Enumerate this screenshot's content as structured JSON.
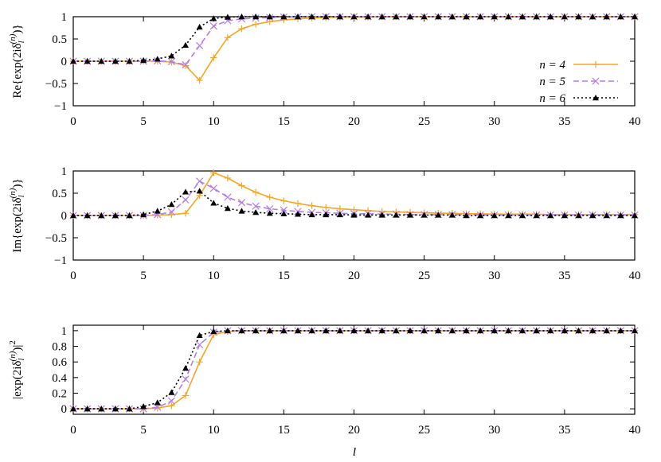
{
  "chart_data": [
    {
      "type": "line",
      "panel": "re",
      "ylabel_parts": {
        "pre": "Re{exp(2iδ",
        "sub": "l",
        "sup": "(n)",
        "post": ")}"
      },
      "xlim": [
        0,
        40
      ],
      "ylim": [
        -1,
        1
      ],
      "xticks": [
        "0",
        "5",
        "10",
        "15",
        "20",
        "25",
        "30",
        "35",
        "40"
      ],
      "yticks": [
        "−1",
        "−0.5",
        "0",
        "0.5",
        "1"
      ],
      "ytick_values": [
        -1,
        -0.5,
        0,
        0.5,
        1
      ],
      "legend_placement": "right",
      "x": [
        0,
        1,
        2,
        3,
        4,
        5,
        6,
        7,
        8,
        9,
        10,
        11,
        12,
        13,
        14,
        15,
        16,
        17,
        18,
        19,
        20,
        21,
        22,
        23,
        24,
        25,
        26,
        27,
        28,
        29,
        30,
        31,
        32,
        33,
        34,
        35,
        36,
        37,
        38,
        39,
        40
      ],
      "series": [
        {
          "name": "n = 4",
          "color": "#f5a623",
          "marker": "plus",
          "dash": "",
          "values": [
            0,
            0,
            0,
            0,
            0,
            0,
            0,
            -0.02,
            -0.1,
            -0.43,
            0.08,
            0.53,
            0.73,
            0.83,
            0.89,
            0.93,
            0.95,
            0.97,
            0.98,
            0.99,
            0.99,
            0.99,
            1,
            1,
            1,
            1,
            1,
            1,
            1,
            1,
            1,
            1,
            1,
            1,
            1,
            1,
            1,
            1,
            1,
            1,
            1
          ]
        },
        {
          "name": "n = 5",
          "color": "#b37fe6",
          "marker": "cross",
          "dash": "7,4",
          "values": [
            0,
            0,
            0,
            0,
            0,
            0,
            0.01,
            -0.01,
            -0.08,
            0.35,
            0.79,
            0.91,
            0.95,
            0.97,
            0.98,
            0.99,
            1,
            1,
            1,
            1,
            1,
            1,
            1,
            1,
            1,
            1,
            1,
            1,
            1,
            1,
            1,
            1,
            1,
            1,
            1,
            1,
            1,
            1,
            1,
            1,
            1
          ]
        },
        {
          "name": "n = 6",
          "color": "#000000",
          "marker": "triangle",
          "dash": "2,3",
          "values": [
            0,
            0,
            0,
            0,
            0,
            0.02,
            0.05,
            0.12,
            0.36,
            0.77,
            0.96,
            0.99,
            1,
            1,
            1,
            1,
            1,
            1,
            1,
            1,
            1,
            1,
            1,
            1,
            1,
            1,
            1,
            1,
            1,
            1,
            1,
            1,
            1,
            1,
            1,
            1,
            1,
            1,
            1,
            1,
            1
          ]
        }
      ]
    },
    {
      "type": "line",
      "panel": "im",
      "ylabel_parts": {
        "pre": "Im{exp(2iδ",
        "sub": "l",
        "sup": "(n)",
        "post": ")}"
      },
      "xlim": [
        0,
        40
      ],
      "ylim": [
        -1,
        1
      ],
      "xticks": [
        "0",
        "5",
        "10",
        "15",
        "20",
        "25",
        "30",
        "35",
        "40"
      ],
      "yticks": [
        "−1",
        "−0.5",
        "0",
        "0.5",
        "1"
      ],
      "ytick_values": [
        -1,
        -0.5,
        0,
        0.5,
        1
      ],
      "x": [
        0,
        1,
        2,
        3,
        4,
        5,
        6,
        7,
        8,
        9,
        10,
        11,
        12,
        13,
        14,
        15,
        16,
        17,
        18,
        19,
        20,
        21,
        22,
        23,
        24,
        25,
        26,
        27,
        28,
        29,
        30,
        31,
        32,
        33,
        34,
        35,
        36,
        37,
        38,
        39,
        40
      ],
      "series": [
        {
          "name": "n = 4",
          "color": "#f5a623",
          "marker": "plus",
          "dash": "",
          "values": [
            0,
            0,
            0,
            0,
            0,
            0,
            0.01,
            0.02,
            0.05,
            0.45,
            0.96,
            0.84,
            0.67,
            0.52,
            0.41,
            0.33,
            0.27,
            0.22,
            0.18,
            0.15,
            0.13,
            0.11,
            0.09,
            0.08,
            0.07,
            0.06,
            0.05,
            0.05,
            0.04,
            0.04,
            0.03,
            0.03,
            0.03,
            0.03,
            0.02,
            0.02,
            0.02,
            0.02,
            0.02,
            0.02,
            0.02
          ]
        },
        {
          "name": "n = 5",
          "color": "#b37fe6",
          "marker": "cross",
          "dash": "7,4",
          "values": [
            0,
            0,
            0,
            0,
            0,
            0,
            0.02,
            0.08,
            0.35,
            0.77,
            0.61,
            0.41,
            0.29,
            0.21,
            0.15,
            0.12,
            0.09,
            0.07,
            0.06,
            0.05,
            0.04,
            0.04,
            0.03,
            0.03,
            0.02,
            0.02,
            0.02,
            0.02,
            0.02,
            0.01,
            0.01,
            0.01,
            0.01,
            0.01,
            0.01,
            0.01,
            0.01,
            0.01,
            0.01,
            0.01,
            0.01
          ]
        },
        {
          "name": "n = 6",
          "color": "#000000",
          "marker": "triangle",
          "dash": "2,3",
          "values": [
            0,
            0,
            0,
            0,
            0,
            0.02,
            0.1,
            0.25,
            0.53,
            0.55,
            0.28,
            0.16,
            0.1,
            0.07,
            0.05,
            0.04,
            0.03,
            0.02,
            0.02,
            0.02,
            0.01,
            0.01,
            0.01,
            0.01,
            0.01,
            0.01,
            0.01,
            0.01,
            0,
            0,
            0,
            0,
            0,
            0,
            0,
            0,
            0,
            0,
            0,
            0,
            0
          ]
        }
      ]
    },
    {
      "type": "line",
      "panel": "abs",
      "ylabel_parts": {
        "pre": "|exp(2iδ",
        "sub": "l",
        "sup": "(n)",
        "post": ")|",
        "sup2": "2"
      },
      "xlabel": "l",
      "xlim": [
        0,
        40
      ],
      "ylim": [
        -0.07,
        1.07
      ],
      "xticks": [
        "0",
        "5",
        "10",
        "15",
        "20",
        "25",
        "30",
        "35",
        "40"
      ],
      "yticks": [
        "0",
        "0.2",
        "0.4",
        "0.6",
        "0.8",
        "1"
      ],
      "ytick_values": [
        0,
        0.2,
        0.4,
        0.6,
        0.8,
        1
      ],
      "x": [
        0,
        1,
        2,
        3,
        4,
        5,
        6,
        7,
        8,
        9,
        10,
        11,
        12,
        13,
        14,
        15,
        16,
        17,
        18,
        19,
        20,
        21,
        22,
        23,
        24,
        25,
        26,
        27,
        28,
        29,
        30,
        31,
        32,
        33,
        34,
        35,
        36,
        37,
        38,
        39,
        40
      ],
      "series": [
        {
          "name": "n = 4",
          "color": "#f5a623",
          "marker": "plus",
          "dash": "",
          "values": [
            0,
            0,
            0,
            0,
            0,
            0,
            0.01,
            0.04,
            0.17,
            0.6,
            0.95,
            0.99,
            1,
            1,
            1,
            1,
            1,
            1,
            1,
            1,
            1,
            1,
            1,
            1,
            1,
            1,
            1,
            1,
            1,
            1,
            1,
            1,
            1,
            1,
            1,
            1,
            1,
            1,
            1,
            1,
            1
          ]
        },
        {
          "name": "n = 5",
          "color": "#b37fe6",
          "marker": "cross",
          "dash": "7,4",
          "values": [
            0,
            0,
            0,
            0,
            0,
            0,
            0.02,
            0.1,
            0.38,
            0.82,
            0.98,
            1,
            1,
            1,
            1,
            1,
            1,
            1,
            1,
            1,
            1,
            1,
            1,
            1,
            1,
            1,
            1,
            1,
            1,
            1,
            1,
            1,
            1,
            1,
            1,
            1,
            1,
            1,
            1,
            1,
            1
          ]
        },
        {
          "name": "n = 6",
          "color": "#000000",
          "marker": "triangle",
          "dash": "2,3",
          "values": [
            0,
            0,
            0,
            0,
            0,
            0.03,
            0.08,
            0.21,
            0.52,
            0.94,
            0.99,
            1,
            1,
            1,
            1,
            1,
            1,
            1,
            1,
            1,
            1,
            1,
            1,
            1,
            1,
            1,
            1,
            1,
            1,
            1,
            1,
            1,
            1,
            1,
            1,
            1,
            1,
            1,
            1,
            1,
            1
          ]
        }
      ]
    }
  ]
}
